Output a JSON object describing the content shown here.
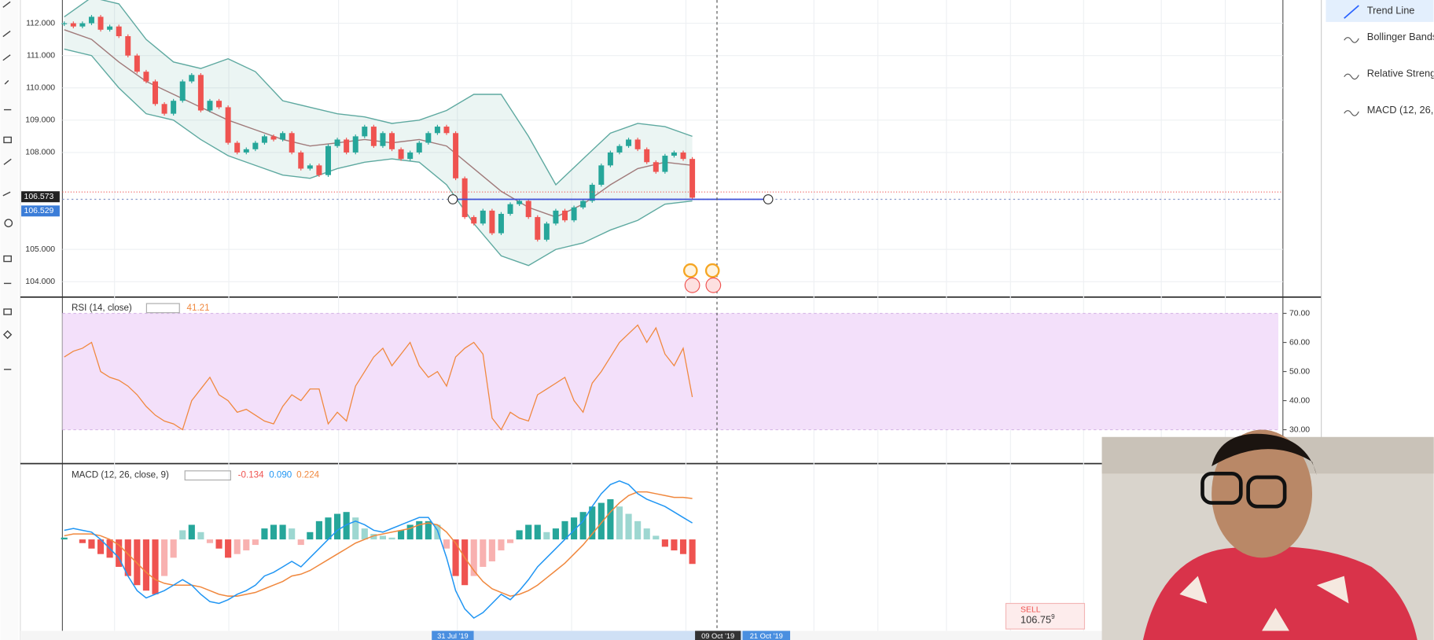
{
  "sidebar_items": [
    "Trend Line",
    "Bollinger Bands",
    "Relative Streng",
    "MACD (12, 26,"
  ],
  "date_labels": [
    "31 Jul '19",
    "09 Oct '19",
    "21 Oct '19"
  ],
  "order": {
    "side": "SELL",
    "price": "106.75",
    "price_fraction": "9"
  },
  "chart_data": [
    {
      "type": "candlestick",
      "values": [
        112.0,
        111.9,
        112.0,
        112.2,
        111.8,
        111.9,
        111.6,
        111.0,
        110.5,
        110.2,
        109.5,
        109.2,
        109.6,
        110.2,
        110.4,
        109.3,
        109.6,
        109.4,
        108.3,
        108.0,
        108.1,
        108.3,
        108.5,
        108.4,
        108.6,
        108.0,
        107.5,
        107.6,
        107.3,
        108.2,
        108.4,
        108.0,
        108.5,
        108.8,
        108.2,
        108.6,
        108.1,
        107.8,
        108.0,
        108.3,
        108.6,
        108.8,
        108.6,
        107.2,
        106.0,
        105.8,
        106.2,
        105.5,
        106.1,
        106.4,
        106.5,
        106.0,
        105.3,
        105.8,
        106.2,
        105.9,
        106.3,
        106.5,
        107.0,
        107.6,
        108.0,
        108.2,
        108.4,
        108.1,
        107.7,
        107.4,
        107.9,
        108.0,
        107.8,
        106.6
      ],
      "colors": {
        "up": "#26a69a",
        "down": "#ef5350"
      },
      "bands": {
        "color": "#5ea9a0",
        "middle_color": "#a07a7a",
        "upper": [
          112.2,
          112.8,
          112.6,
          111.5,
          110.8,
          110.6,
          110.9,
          110.5,
          109.6,
          109.4,
          109.2,
          109.1,
          108.9,
          109.0,
          109.3,
          109.8,
          109.8,
          108.5,
          107.0,
          107.8,
          108.6,
          108.9,
          108.8,
          108.5
        ],
        "middle": [
          111.8,
          111.5,
          110.8,
          110.2,
          109.8,
          109.4,
          109.0,
          108.7,
          108.4,
          108.2,
          108.3,
          108.4,
          108.3,
          108.4,
          108.2,
          107.5,
          106.8,
          106.3,
          106.0,
          106.4,
          107.0,
          107.5,
          107.7,
          107.6
        ],
        "lower": [
          111.2,
          111.0,
          110.0,
          109.2,
          109.0,
          108.4,
          107.9,
          107.6,
          107.3,
          107.2,
          107.5,
          107.7,
          107.8,
          107.7,
          107.0,
          105.8,
          104.8,
          104.5,
          105.0,
          105.2,
          105.6,
          105.9,
          106.4,
          106.5
        ]
      },
      "trend_line": 106.55,
      "price_labels": [
        {
          "value": 106.573,
          "label": "106.573"
        },
        {
          "value": 106.529,
          "label": "106.529"
        }
      ],
      "ylim": [
        103.55,
        112.72
      ],
      "yticks": [
        {
          "value": 104,
          "label": "104.000"
        },
        {
          "value": 105,
          "label": "105.000"
        },
        {
          "value": 108,
          "label": "108.000"
        },
        {
          "value": 109,
          "label": "109.000"
        },
        {
          "value": 110,
          "label": "110.000"
        },
        {
          "value": 111,
          "label": "111.000"
        },
        {
          "value": 112,
          "label": "112.000"
        }
      ],
      "grid": true
    },
    {
      "type": "line",
      "title": "RSI (14, close)",
      "color": "#f0883e",
      "band": [
        30,
        70
      ],
      "band_color": "#f3e0fa",
      "values": [
        55,
        57,
        58,
        60,
        50,
        48,
        47,
        45,
        42,
        38,
        35,
        33,
        32,
        30,
        40,
        44,
        48,
        42,
        40,
        36,
        37,
        35,
        33,
        32,
        38,
        42,
        40,
        44,
        44,
        32,
        36,
        33,
        45,
        50,
        55,
        58,
        52,
        56,
        60,
        52,
        48,
        50,
        45,
        55,
        58,
        60,
        56,
        34,
        30,
        36,
        34,
        33,
        42,
        44,
        46,
        48,
        40,
        36,
        46,
        50,
        55,
        60,
        63,
        66,
        60,
        65,
        56,
        52,
        58,
        41.21
      ],
      "legend_value": 41.21,
      "ylim": [
        19,
        74
      ],
      "yticks": [
        {
          "value": 70,
          "label": "70.00"
        },
        {
          "value": 60,
          "label": "60.00"
        },
        {
          "value": 50,
          "label": "50.00"
        },
        {
          "value": 40,
          "label": "40.00"
        },
        {
          "value": 30,
          "label": "30.00"
        }
      ]
    },
    {
      "type": "macd",
      "title": "MACD (12, 26, close, 9)",
      "histogram": [
        0.01,
        0.0,
        -0.02,
        -0.05,
        -0.08,
        -0.1,
        -0.15,
        -0.2,
        -0.25,
        -0.28,
        -0.3,
        -0.2,
        -0.1,
        0.05,
        0.08,
        0.04,
        -0.02,
        -0.05,
        -0.1,
        -0.08,
        -0.06,
        -0.03,
        0.06,
        0.08,
        0.08,
        0.06,
        -0.03,
        0.04,
        0.1,
        0.12,
        0.14,
        0.15,
        0.12,
        0.06,
        0.03,
        0.02,
        0.01,
        0.05,
        0.08,
        0.1,
        0.1,
        0.08,
        -0.05,
        -0.2,
        -0.25,
        -0.2,
        -0.15,
        -0.12,
        -0.06,
        -0.02,
        0.05,
        0.08,
        0.08,
        0.04,
        0.06,
        0.1,
        0.12,
        0.15,
        0.18,
        0.2,
        0.22,
        0.18,
        0.14,
        0.1,
        0.06,
        0.02,
        -0.04,
        -0.06,
        -0.08,
        -0.134
      ],
      "macd": [
        0.05,
        0.06,
        0.05,
        0.04,
        0.0,
        -0.05,
        -0.1,
        -0.2,
        -0.28,
        -0.32,
        -0.3,
        -0.28,
        -0.25,
        -0.22,
        -0.25,
        -0.3,
        -0.34,
        -0.35,
        -0.33,
        -0.3,
        -0.28,
        -0.25,
        -0.2,
        -0.18,
        -0.15,
        -0.12,
        -0.15,
        -0.1,
        -0.05,
        0.0,
        0.05,
        0.08,
        0.1,
        0.08,
        0.05,
        0.04,
        0.06,
        0.08,
        0.1,
        0.12,
        0.12,
        0.05,
        -0.1,
        -0.28,
        -0.38,
        -0.43,
        -0.4,
        -0.35,
        -0.3,
        -0.33,
        -0.28,
        -0.22,
        -0.15,
        -0.1,
        -0.05,
        0.0,
        0.05,
        0.1,
        0.18,
        0.25,
        0.3,
        0.32,
        0.3,
        0.25,
        0.22,
        0.2,
        0.18,
        0.15,
        0.12,
        0.09
      ],
      "signal": [
        0.02,
        0.03,
        0.03,
        0.03,
        0.02,
        0.0,
        -0.03,
        -0.08,
        -0.13,
        -0.18,
        -0.22,
        -0.24,
        -0.25,
        -0.25,
        -0.25,
        -0.26,
        -0.28,
        -0.3,
        -0.31,
        -0.31,
        -0.3,
        -0.29,
        -0.27,
        -0.25,
        -0.23,
        -0.2,
        -0.19,
        -0.17,
        -0.14,
        -0.11,
        -0.08,
        -0.05,
        -0.02,
        0.0,
        0.02,
        0.03,
        0.04,
        0.05,
        0.06,
        0.08,
        0.09,
        0.08,
        0.04,
        -0.02,
        -0.1,
        -0.17,
        -0.23,
        -0.27,
        -0.29,
        -0.31,
        -0.3,
        -0.28,
        -0.25,
        -0.21,
        -0.17,
        -0.13,
        -0.08,
        -0.03,
        0.03,
        0.09,
        0.15,
        0.2,
        0.24,
        0.26,
        0.26,
        0.25,
        0.24,
        0.23,
        0.23,
        0.224
      ],
      "colors": {
        "macd": "#2196f3",
        "signal": "#f0883e",
        "up": "#26a69a",
        "down": "#ef5350"
      },
      "legend_values": [
        {
          "value": -0.134,
          "label": "-0.134"
        },
        {
          "value": 0.09,
          "label": "0.090"
        },
        {
          "value": 0.224,
          "label": "0.224"
        }
      ],
      "ylim": [
        -0.5,
        0.4
      ]
    }
  ]
}
